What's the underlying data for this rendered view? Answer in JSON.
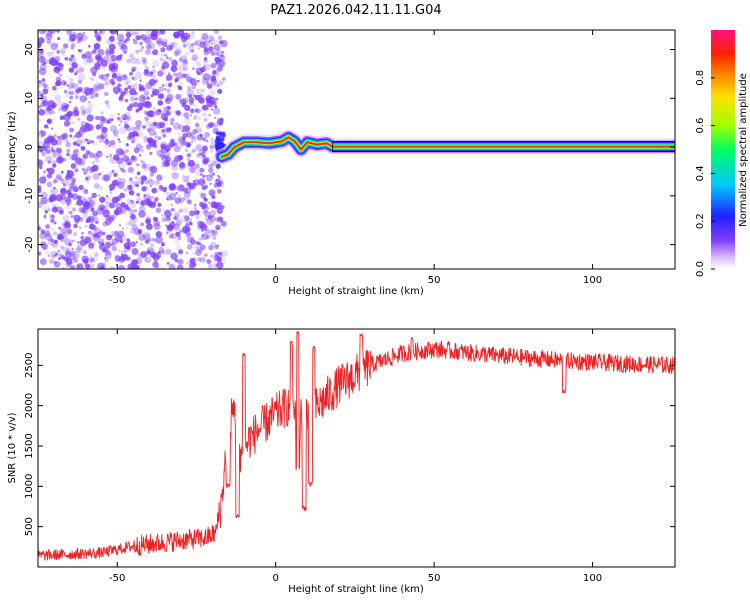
{
  "title": "PAZ1.2026.042.11.11.G04",
  "colors": {
    "noise": "#7f3fff",
    "track_core": "#e0302e",
    "snr_line": "#ee2222",
    "axis": "#000000"
  },
  "chart_data": [
    {
      "type": "heatmap",
      "name": "spectrogram",
      "xlabel": "Height of straight line (km)",
      "ylabel": "Frequency (Hz)",
      "xlim": [
        -75,
        126
      ],
      "ylim": [
        -25,
        24
      ],
      "xticks": [
        -50,
        0,
        50,
        100
      ],
      "yticks": [
        20,
        10,
        0,
        -10,
        -20
      ],
      "noise_region_x": [
        -75,
        -18
      ],
      "track_points": [
        {
          "x": -17,
          "y": -2
        },
        {
          "x": -15,
          "y": -1.5
        },
        {
          "x": -13,
          "y": 0
        },
        {
          "x": -10,
          "y": 1
        },
        {
          "x": -6,
          "y": 1
        },
        {
          "x": -2,
          "y": 0.8
        },
        {
          "x": 2,
          "y": 1.2
        },
        {
          "x": 4,
          "y": 2
        },
        {
          "x": 6,
          "y": 1.2
        },
        {
          "x": 8,
          "y": -0.5
        },
        {
          "x": 10,
          "y": 1
        },
        {
          "x": 13,
          "y": 0.5
        },
        {
          "x": 16,
          "y": 0.8
        },
        {
          "x": 18,
          "y": 0.1
        },
        {
          "x": 126,
          "y": 0.1
        }
      ],
      "colorbar": {
        "label": "Normalized spectral amplitude",
        "range": [
          0,
          1
        ],
        "ticks": [
          0.0,
          0.2,
          0.4,
          0.6,
          0.8
        ]
      }
    },
    {
      "type": "line",
      "name": "snr",
      "xlabel": "Height of straight line (km)",
      "ylabel": "SNR (10 * v/v)",
      "xlim": [
        -75,
        126
      ],
      "ylim": [
        0,
        2950
      ],
      "xticks": [
        -50,
        0,
        50,
        100
      ],
      "yticks": [
        500,
        1000,
        1500,
        2000,
        2500
      ],
      "trend": [
        {
          "x": -75,
          "y": 140
        },
        {
          "x": -55,
          "y": 175
        },
        {
          "x": -45,
          "y": 260
        },
        {
          "x": -30,
          "y": 330
        },
        {
          "x": -22,
          "y": 360
        },
        {
          "x": -19,
          "y": 420
        },
        {
          "x": -17,
          "y": 820
        },
        {
          "x": -15,
          "y": 1750
        },
        {
          "x": -13,
          "y": 1950
        },
        {
          "x": -11,
          "y": 1400
        },
        {
          "x": -8,
          "y": 1600
        },
        {
          "x": -4,
          "y": 1750
        },
        {
          "x": 0,
          "y": 1900
        },
        {
          "x": 4,
          "y": 2000
        },
        {
          "x": 8,
          "y": 1850
        },
        {
          "x": 12,
          "y": 1950
        },
        {
          "x": 20,
          "y": 2250
        },
        {
          "x": 30,
          "y": 2500
        },
        {
          "x": 40,
          "y": 2650
        },
        {
          "x": 50,
          "y": 2700
        },
        {
          "x": 70,
          "y": 2620
        },
        {
          "x": 90,
          "y": 2560
        },
        {
          "x": 110,
          "y": 2520
        },
        {
          "x": 126,
          "y": 2500
        }
      ],
      "dips": [
        {
          "x": -15,
          "y": 980
        },
        {
          "x": -12,
          "y": 600
        },
        {
          "x": 7,
          "y": 1200
        },
        {
          "x": 9,
          "y": 700
        },
        {
          "x": 11,
          "y": 1000
        },
        {
          "x": 91,
          "y": 2150
        }
      ],
      "peaks": [
        {
          "x": -10,
          "y": 2650
        },
        {
          "x": 5,
          "y": 2800
        },
        {
          "x": 7,
          "y": 2920
        },
        {
          "x": 12,
          "y": 2750
        },
        {
          "x": 27,
          "y": 2900
        },
        {
          "x": 43,
          "y": 2850
        }
      ]
    }
  ]
}
